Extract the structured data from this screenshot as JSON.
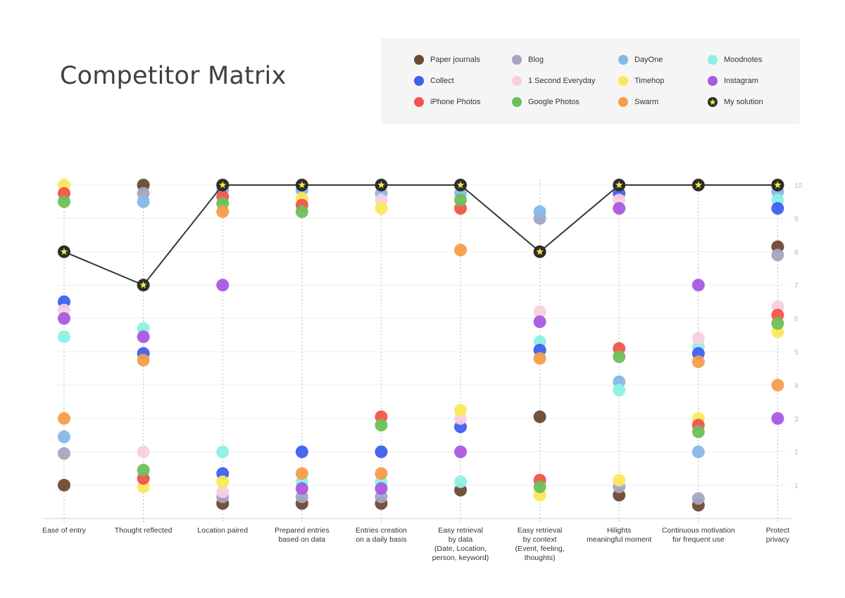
{
  "title": "Competitor Matrix",
  "chart_data": {
    "type": "scatter",
    "ylim": [
      0,
      10
    ],
    "y_ticks": [
      "1",
      "2",
      "3",
      "4",
      "5",
      "6",
      "7",
      "8",
      "9",
      "10"
    ],
    "categories": [
      [
        "Ease of entry"
      ],
      [
        "Thought reflected"
      ],
      [
        "Location paired"
      ],
      [
        "Prepared entries",
        "based on data"
      ],
      [
        "Entries creation",
        "on a daily basis"
      ],
      [
        "Easy retrieval",
        "by data",
        "(Date, Location,",
        "person, keyword)"
      ],
      [
        "Easy retrieval",
        "by context",
        "(Event, feeling,",
        "thoughts)"
      ],
      [
        "Hilights",
        "meaningful moment"
      ],
      [
        "Continuous motivation",
        "for frequent use"
      ],
      [
        "Protect",
        "privacy"
      ]
    ],
    "series": [
      {
        "name": "Paper journals",
        "color": "#6b4a33",
        "values": [
          1.0,
          10.0,
          0.45,
          0.45,
          0.45,
          0.85,
          3.05,
          0.7,
          0.4,
          8.15
        ]
      },
      {
        "name": "Blog",
        "color": "#a5a5c0",
        "values": [
          1.95,
          9.75,
          0.65,
          0.65,
          0.65,
          null,
          9.0,
          0.95,
          0.6,
          7.9
        ]
      },
      {
        "name": "DayOne",
        "color": "#86b8e6",
        "values": [
          2.45,
          9.5,
          9.85,
          9.85,
          9.75,
          9.75,
          9.2,
          4.1,
          2.0,
          9.8
        ]
      },
      {
        "name": "Moodnotes",
        "color": "#8ef0e4",
        "values": [
          5.45,
          5.7,
          2.0,
          1.1,
          1.1,
          1.1,
          5.3,
          3.85,
          5.15,
          9.55
        ]
      },
      {
        "name": "Collect",
        "color": "#3f60ee",
        "values": [
          6.5,
          4.95,
          1.35,
          2.0,
          2.0,
          2.75,
          5.05,
          9.75,
          4.95,
          9.3
        ]
      },
      {
        "name": "1 Second Everyday",
        "color": "#f9cfe0",
        "values": [
          6.25,
          2.0,
          0.8,
          null,
          9.55,
          3.0,
          6.2,
          9.55,
          5.4,
          6.35
        ]
      },
      {
        "name": "Timehop",
        "color": "#fbe85a",
        "values": [
          10.0,
          0.95,
          1.1,
          9.6,
          9.3,
          3.25,
          0.7,
          1.15,
          3.0,
          5.6
        ]
      },
      {
        "name": "Instagram",
        "color": "#a85ae0",
        "values": [
          6.0,
          5.45,
          7.0,
          0.9,
          0.9,
          2.0,
          5.9,
          9.3,
          7.0,
          3.0
        ]
      },
      {
        "name": "iPhone Photos",
        "color": "#f2544b",
        "values": [
          9.75,
          1.2,
          9.65,
          9.4,
          3.05,
          9.3,
          1.15,
          5.1,
          2.8,
          6.1
        ]
      },
      {
        "name": "Google Photos",
        "color": "#6fbf5a",
        "values": [
          9.5,
          1.45,
          9.45,
          9.2,
          2.8,
          9.55,
          0.95,
          4.85,
          2.6,
          5.85
        ]
      },
      {
        "name": "Swarm",
        "color": "#f59d4c",
        "values": [
          3.0,
          4.75,
          9.2,
          1.35,
          1.35,
          8.05,
          4.8,
          null,
          4.7,
          4.0
        ]
      }
    ],
    "my_solution": {
      "name": "My solution",
      "values": [
        8,
        7,
        10,
        10,
        10,
        10,
        8,
        10,
        10,
        10
      ],
      "color": "#363636",
      "star_color": "#f6e93d"
    }
  },
  "legend": [
    {
      "name": "Paper journals",
      "color": "#6b4a33"
    },
    {
      "name": "Blog",
      "color": "#a5a5c0"
    },
    {
      "name": "DayOne",
      "color": "#86b8e6"
    },
    {
      "name": "Moodnotes",
      "color": "#8ef0e4"
    },
    {
      "name": "Collect",
      "color": "#3f60ee"
    },
    {
      "name": "1 Second Everyday",
      "color": "#f9cfe0"
    },
    {
      "name": "Timehop",
      "color": "#fbe85a"
    },
    {
      "name": "Instagram",
      "color": "#a85ae0"
    },
    {
      "name": "iPhone Photos",
      "color": "#f2544b"
    },
    {
      "name": "Google Photos",
      "color": "#6fbf5a"
    },
    {
      "name": "Swarm",
      "color": "#f59d4c"
    },
    {
      "name": "My solution",
      "color": "#2d2d2d",
      "icon": "star-icon"
    }
  ]
}
